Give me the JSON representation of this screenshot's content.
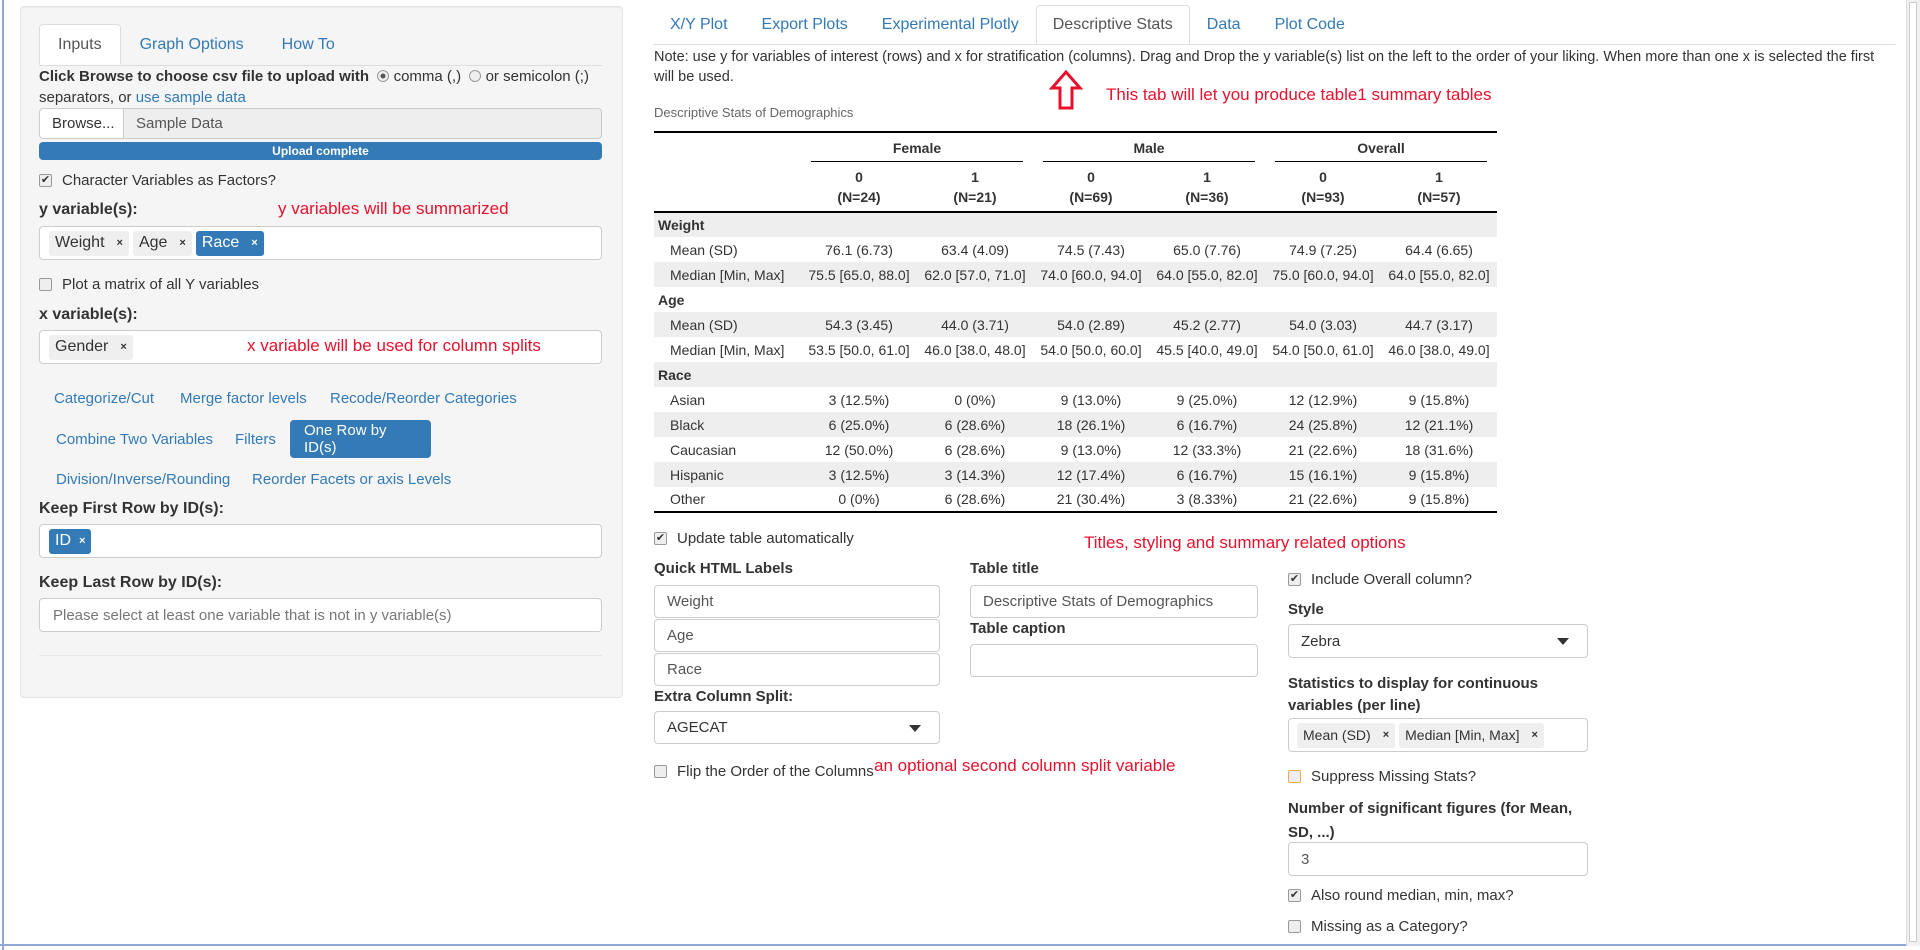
{
  "left": {
    "tabs": [
      "Inputs",
      "Graph Options",
      "How To"
    ],
    "upload_label": "Click Browse to choose csv file to upload with",
    "radio_comma": "comma (,)",
    "radio_semicolon": "or semicolon (;)",
    "separators_text": "separators, or",
    "sample_link": "use sample data",
    "browse_button": "Browse...",
    "file_name": "Sample Data",
    "upload_status": "Upload complete",
    "upload_progress": 100,
    "char_factors": "Character Variables as Factors?",
    "y_label": "y variable(s):",
    "y_chips": [
      "Weight",
      "Age",
      "Race"
    ],
    "y_annotation": "y variables will be summarized",
    "plot_matrix": "Plot a matrix of all Y variables",
    "x_label": "x variable(s):",
    "x_chips": [
      "Gender"
    ],
    "x_annotation": "x variable will be used for column splits",
    "pills": [
      "Categorize/Cut",
      "Merge factor levels",
      "Recode/Reorder Categories",
      "Combine Two Variables",
      "Filters",
      "One Row by ID(s)",
      "Division/Inverse/Rounding",
      "Reorder Facets or axis Levels"
    ],
    "keep_first_label": "Keep First Row by ID(s):",
    "keep_first_chips": [
      "ID"
    ],
    "keep_last_label": "Keep Last Row by ID(s):",
    "keep_last_placeholder": "Please select at least one variable that is not in y variable(s)"
  },
  "right": {
    "tabs": [
      "X/Y Plot",
      "Export Plots",
      "Experimental Plotly",
      "Descriptive Stats",
      "Data",
      "Plot Code"
    ],
    "note": "Note: use y for variables of interest (rows) and x for stratification (columns). Drag and Drop the y variable(s) list on the left to the order of your liking. When more than one x is selected the first will be used.",
    "tab_annotation": "This tab will let you produce table1 summary tables",
    "table_title": "Descriptive Stats of Demographics",
    "table": {
      "groups": [
        "Female",
        "Male",
        "Overall"
      ],
      "subcols": [
        [
          "0",
          "(N=24)"
        ],
        [
          "1",
          "(N=21)"
        ],
        [
          "0",
          "(N=69)"
        ],
        [
          "1",
          "(N=36)"
        ],
        [
          "0",
          "(N=93)"
        ],
        [
          "1",
          "(N=57)"
        ]
      ],
      "sections": [
        {
          "name": "Weight",
          "rows": [
            [
              "Mean (SD)",
              "76.1 (6.73)",
              "63.4 (4.09)",
              "74.5 (7.43)",
              "65.0 (7.76)",
              "74.9 (7.25)",
              "64.4 (6.65)"
            ],
            [
              "Median [Min, Max]",
              "75.5 [65.0, 88.0]",
              "62.0 [57.0, 71.0]",
              "74.0 [60.0, 94.0]",
              "64.0 [55.0, 82.0]",
              "75.0 [60.0, 94.0]",
              "64.0 [55.0, 82.0]"
            ]
          ]
        },
        {
          "name": "Age",
          "rows": [
            [
              "Mean (SD)",
              "54.3 (3.45)",
              "44.0 (3.71)",
              "54.0 (2.89)",
              "45.2 (2.77)",
              "54.0 (3.03)",
              "44.7 (3.17)"
            ],
            [
              "Median [Min, Max]",
              "53.5 [50.0, 61.0]",
              "46.0 [38.0, 48.0]",
              "54.0 [50.0, 60.0]",
              "45.5 [40.0, 49.0]",
              "54.0 [50.0, 61.0]",
              "46.0 [38.0, 49.0]"
            ]
          ]
        },
        {
          "name": "Race",
          "rows": [
            [
              "Asian",
              "3 (12.5%)",
              "0 (0%)",
              "9 (13.0%)",
              "9 (25.0%)",
              "12 (12.9%)",
              "9 (15.8%)"
            ],
            [
              "Black",
              "6 (25.0%)",
              "6 (28.6%)",
              "18 (26.1%)",
              "6 (16.7%)",
              "24 (25.8%)",
              "12 (21.1%)"
            ],
            [
              "Caucasian",
              "12 (50.0%)",
              "6 (28.6%)",
              "9 (13.0%)",
              "12 (33.3%)",
              "21 (22.6%)",
              "18 (31.6%)"
            ],
            [
              "Hispanic",
              "3 (12.5%)",
              "3 (14.3%)",
              "12 (17.4%)",
              "6 (16.7%)",
              "15 (16.1%)",
              "9 (15.8%)"
            ],
            [
              "Other",
              "0 (0%)",
              "6 (28.6%)",
              "21 (30.4%)",
              "3 (8.33%)",
              "21 (22.6%)",
              "9 (15.8%)"
            ]
          ]
        }
      ]
    },
    "update_auto": "Update table automatically",
    "options_annotation": "Titles, styling and summary related options",
    "quick_labels_label": "Quick HTML Labels",
    "quick_labels": [
      "Weight",
      "Age",
      "Race"
    ],
    "extra_split_label": "Extra Column Split:",
    "extra_split_value": "AGECAT",
    "flip_label": "Flip the Order of the Columns",
    "split_annotation": "an optional second column split variable",
    "table_title_label": "Table title",
    "table_title_value": "Descriptive Stats of Demographics",
    "table_caption_label": "Table caption",
    "table_caption_value": "",
    "include_overall": "Include Overall column?",
    "style_label": "Style",
    "style_value": "Zebra",
    "stats_label": "Statistics to display for continuous variables (per line)",
    "stats_chips": [
      "Mean (SD)",
      "Median [Min, Max]"
    ],
    "suppress_missing": "Suppress Missing Stats?",
    "sigfig_label": "Number of significant figures (for Mean, SD, ...)",
    "sigfig_value": "3",
    "round_median": "Also round median, min, max?",
    "missing_category": "Missing as a Category?"
  },
  "colors": {
    "accent": "#337ab7",
    "annotation": "#e8112d"
  }
}
